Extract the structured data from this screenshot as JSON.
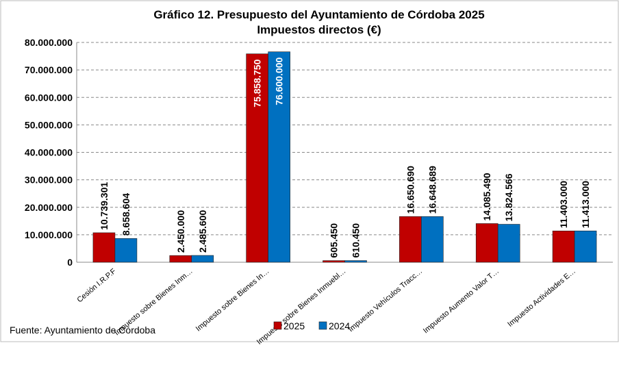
{
  "chart_data": {
    "type": "bar",
    "title": "Gráfico 12. Presupuesto del Ayuntamiento de Córdoba 2025",
    "subtitle": "Impuestos directos (€)",
    "categories": [
      "Cesión I.R.P.F",
      "Impuesto sobre Bienes Inm…",
      "Impuesto sobre Bienes In…",
      "Impuesto sobre Bienes Inmuebl…",
      "Impuesto Vehículos Tracc…",
      "Impuesto Aumento Valor T…",
      "Impuesto Actividades E…"
    ],
    "series": [
      {
        "name": "2025",
        "color": "#c00000",
        "values": [
          10739301,
          2450000,
          75858750,
          605450,
          16650690,
          14085490,
          11403000
        ],
        "value_labels": [
          "10.739.301",
          "2.450.000",
          "75.858.750",
          "605.450",
          "16.650.690",
          "14.085.490",
          "11.403.000"
        ]
      },
      {
        "name": "2024",
        "color": "#0070c0",
        "values": [
          8658604,
          2485600,
          76600000,
          610450,
          16648689,
          13824566,
          11413000
        ],
        "value_labels": [
          "8.658.604",
          "2.485.600",
          "76.600.000",
          "610.450",
          "16.648.689",
          "13.824.566",
          "11.413.000"
        ]
      }
    ],
    "ylim": [
      0,
      80000000
    ],
    "yticks": [
      {
        "value": 0,
        "label": "0"
      },
      {
        "value": 10000000,
        "label": "10.000.000"
      },
      {
        "value": 20000000,
        "label": "20.000.000"
      },
      {
        "value": 30000000,
        "label": "30.000.000"
      },
      {
        "value": 40000000,
        "label": "40.000.000"
      },
      {
        "value": 50000000,
        "label": "50.000.000"
      },
      {
        "value": 60000000,
        "label": "60.000.000"
      },
      {
        "value": 70000000,
        "label": "70.000.000"
      },
      {
        "value": 80000000,
        "label": "80.000.000"
      }
    ],
    "grid": true,
    "legend": "bottom",
    "source": "Fuente: Ayuntamiento de Córdoba"
  }
}
